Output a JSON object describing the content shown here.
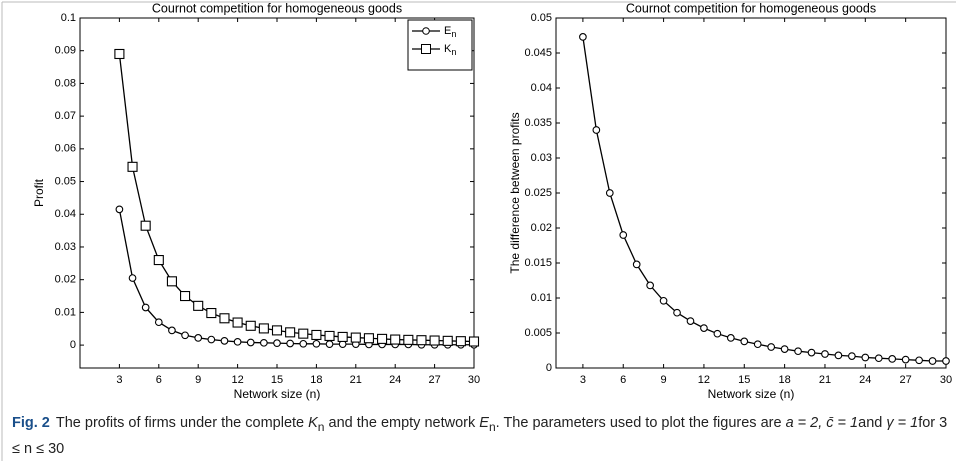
{
  "chart_data": [
    {
      "type": "line",
      "title": "Cournot  competition for homogeneous goods",
      "xlabel": "Network size (n)",
      "ylabel": "Profit",
      "x": [
        3,
        4,
        5,
        6,
        7,
        8,
        9,
        10,
        11,
        12,
        13,
        14,
        15,
        16,
        17,
        18,
        19,
        20,
        21,
        22,
        23,
        24,
        25,
        26,
        27,
        28,
        29,
        30
      ],
      "series": [
        {
          "name": "En",
          "color": "#000000",
          "marker": "circle",
          "values": [
            0.0415,
            0.0205,
            0.0115,
            0.007,
            0.0045,
            0.003,
            0.0022,
            0.0017,
            0.0013,
            0.001,
            0.0008,
            0.0007,
            0.0006,
            0.0005,
            0.0004,
            0.0004,
            0.0003,
            0.0003,
            0.0003,
            0.0002,
            0.0002,
            0.0002,
            0.0002,
            0.0001,
            0.0001,
            0.0001,
            0.0001,
            0.0001
          ]
        },
        {
          "name": "Kn",
          "color": "#000000",
          "marker": "square",
          "values": [
            0.089,
            0.0545,
            0.0365,
            0.026,
            0.0195,
            0.015,
            0.012,
            0.0098,
            0.0082,
            0.0069,
            0.0059,
            0.0051,
            0.0045,
            0.0039,
            0.0035,
            0.0031,
            0.0028,
            0.0025,
            0.0023,
            0.0021,
            0.0019,
            0.0017,
            0.0016,
            0.0015,
            0.0014,
            0.0013,
            0.0012,
            0.0011
          ]
        }
      ],
      "xlim": [
        0,
        30
      ],
      "xticks": [
        3,
        6,
        9,
        12,
        15,
        18,
        21,
        24,
        27,
        30
      ],
      "ylim": [
        -0.007,
        0.1
      ],
      "yticks": [
        0,
        0.01,
        0.02,
        0.03,
        0.04,
        0.05,
        0.06,
        0.07,
        0.08,
        0.09,
        0.1
      ],
      "legend": "upper right"
    },
    {
      "type": "line",
      "title": "Cournot  competition for homogeneous goods",
      "xlabel": "Network size (n)",
      "ylabel": "The difference between profits",
      "x": [
        3,
        4,
        5,
        6,
        7,
        8,
        9,
        10,
        11,
        12,
        13,
        14,
        15,
        16,
        17,
        18,
        19,
        20,
        21,
        22,
        23,
        24,
        25,
        26,
        27,
        28,
        29,
        30
      ],
      "series": [
        {
          "color": "#000000",
          "marker": "circle",
          "values": [
            0.0473,
            0.034,
            0.025,
            0.019,
            0.0148,
            0.0118,
            0.0096,
            0.0079,
            0.0067,
            0.0057,
            0.0049,
            0.0043,
            0.0038,
            0.0034,
            0.003,
            0.0027,
            0.0024,
            0.0022,
            0.002,
            0.0018,
            0.0017,
            0.0015,
            0.0014,
            0.0013,
            0.0012,
            0.0011,
            0.001,
            0.001
          ]
        }
      ],
      "xlim": [
        1,
        30
      ],
      "xticks": [
        3,
        6,
        9,
        12,
        15,
        18,
        21,
        24,
        27,
        30
      ],
      "ylim": [
        0,
        0.05
      ],
      "yticks": [
        0,
        0.005,
        0.01,
        0.015,
        0.02,
        0.025,
        0.03,
        0.035,
        0.04,
        0.045,
        0.05
      ]
    }
  ],
  "caption": {
    "label": "Fig. 2",
    "parts": [
      {
        "text": "The profits of firms under the complete "
      },
      {
        "text": "K",
        "style": "italic"
      },
      {
        "text": "n",
        "style": "sub"
      },
      {
        "text": " and the empty network "
      },
      {
        "text": "E",
        "style": "italic"
      },
      {
        "text": "n",
        "style": "sub"
      },
      {
        "text": ". The parameters used to plot the figures are "
      },
      {
        "text": "a = 2, c̄ = 1",
        "style": "italic"
      },
      {
        "text": "and "
      },
      {
        "text": "γ = 1",
        "style": "italic"
      },
      {
        "text": "for 3 ≤ n ≤ 30"
      }
    ]
  }
}
